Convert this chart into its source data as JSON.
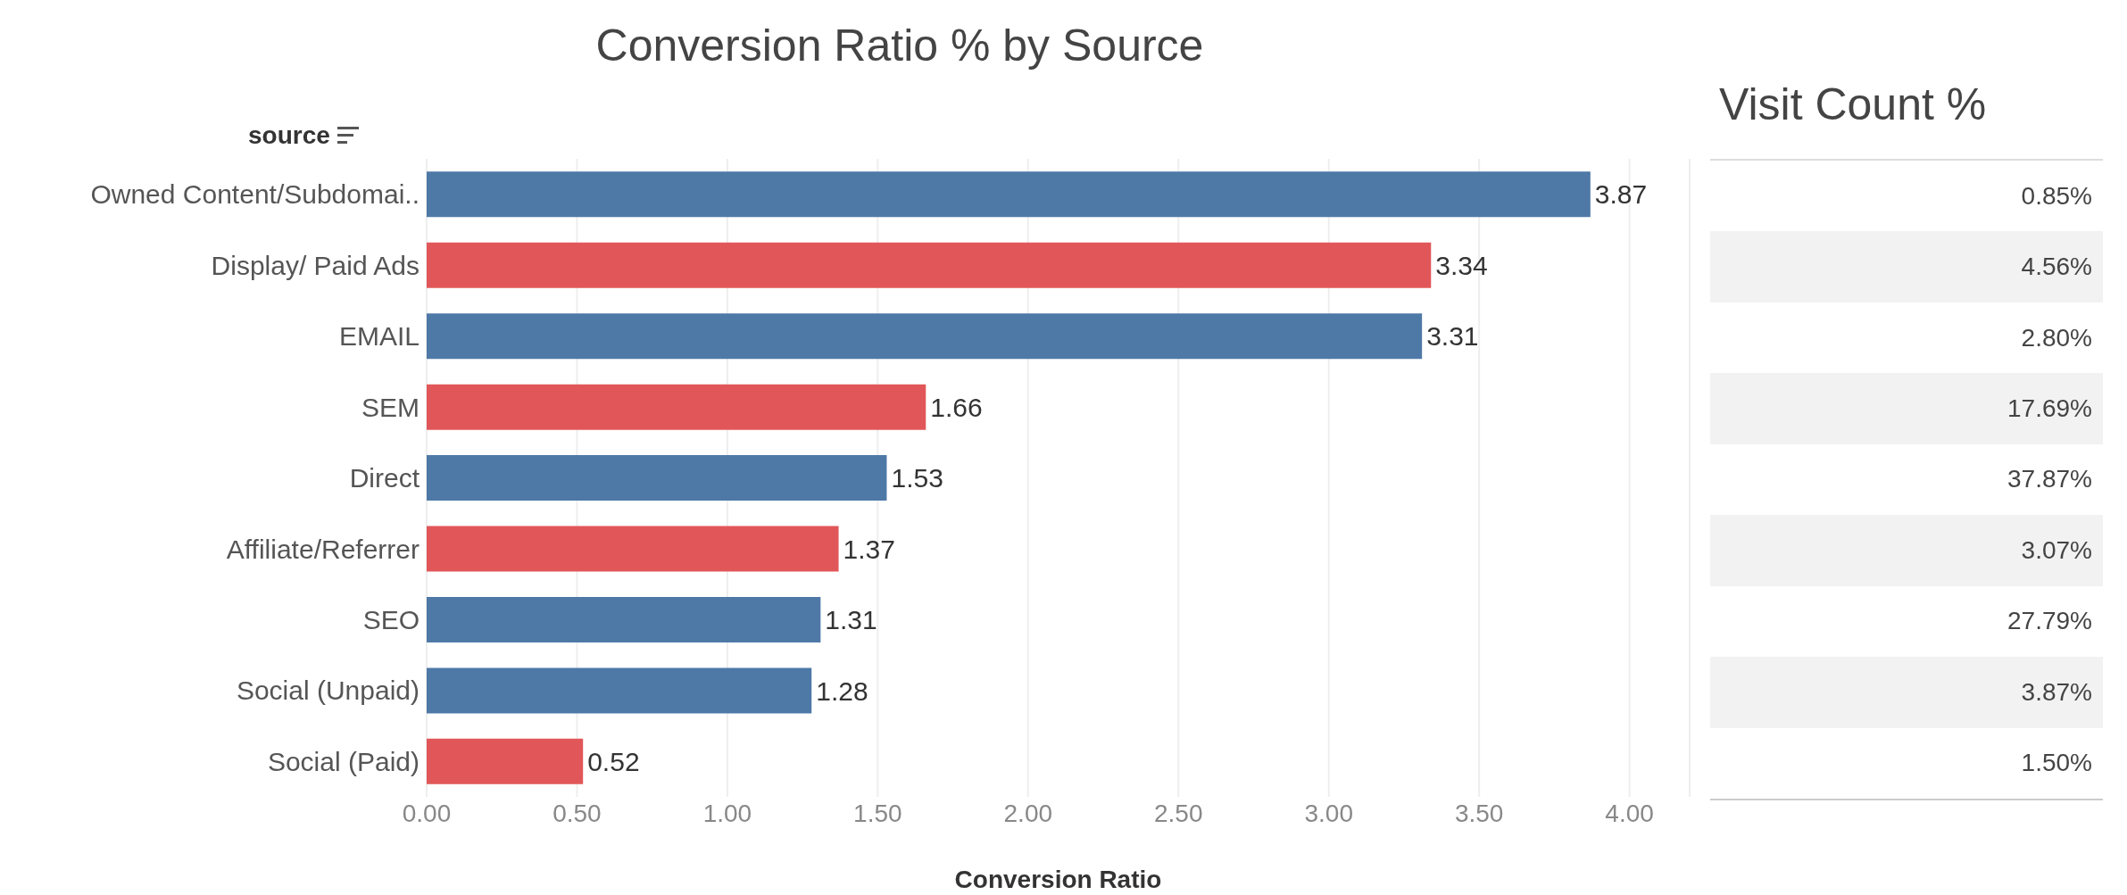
{
  "chart_data": [
    {
      "type": "bar",
      "orientation": "horizontal",
      "title": "Conversion Ratio % by Source",
      "ylabel": "source",
      "xlabel": "Conversion Ratio",
      "categories": [
        "Owned Content/Subdomai..",
        "Display/ Paid Ads",
        "EMAIL",
        "SEM",
        "Direct",
        "Affiliate/Referrer",
        "SEO",
        "Social (Unpaid)",
        "Social (Paid)"
      ],
      "values": [
        3.87,
        3.34,
        3.31,
        1.66,
        1.53,
        1.37,
        1.31,
        1.28,
        0.52
      ],
      "colors": [
        "#4e79a7",
        "#e15759",
        "#4e79a7",
        "#e15759",
        "#4e79a7",
        "#e15759",
        "#4e79a7",
        "#4e79a7",
        "#e15759"
      ],
      "xlim": [
        0,
        4.2
      ],
      "xticks": [
        {
          "value": 0,
          "label": "0.00"
        },
        {
          "value": 0.5,
          "label": "0.50"
        },
        {
          "value": 1,
          "label": "1.00"
        },
        {
          "value": 1.5,
          "label": "1.50"
        },
        {
          "value": 2,
          "label": "2.00"
        },
        {
          "value": 2.5,
          "label": "2.50"
        },
        {
          "value": 3,
          "label": "3.00"
        },
        {
          "value": 3.5,
          "label": "3.50"
        },
        {
          "value": 4,
          "label": "4.00"
        }
      ],
      "grid": "x",
      "data_labels": true
    },
    {
      "type": "other",
      "title": "Visit Count %",
      "annotations": [
        "0.85%",
        "4.56%",
        "2.80%",
        "17.69%",
        "37.87%",
        "3.07%",
        "27.79%",
        "3.87%",
        "1.50%"
      ]
    }
  ]
}
